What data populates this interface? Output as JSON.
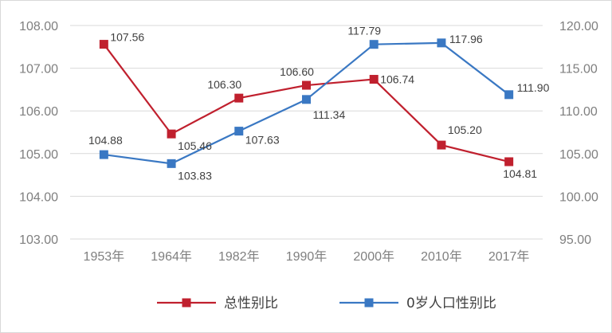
{
  "chart_data": {
    "type": "line",
    "categories": [
      "1953年",
      "1964年",
      "1982年",
      "1990年",
      "2000年",
      "2010年",
      "2017年"
    ],
    "series": [
      {
        "name": "总性别比",
        "axis": "left",
        "color": "#c0202e",
        "values": [
          107.56,
          105.46,
          106.3,
          106.6,
          106.74,
          105.2,
          104.81
        ],
        "labels": [
          "107.56",
          "105.46",
          "106.30",
          "106.60",
          "106.74",
          "105.20",
          "104.81"
        ]
      },
      {
        "name": "0岁人口性别比",
        "axis": "right",
        "color": "#3a78c3",
        "values": [
          104.88,
          103.83,
          107.63,
          111.34,
          117.79,
          117.96,
          111.9
        ],
        "labels": [
          "104.88",
          "103.83",
          "107.63",
          "111.34",
          "117.79",
          "117.96",
          "111.90"
        ]
      }
    ],
    "y_left": {
      "ylim": [
        103,
        108
      ],
      "ticks": [
        "103.00",
        "104.00",
        "105.00",
        "106.00",
        "107.00",
        "108.00"
      ]
    },
    "y_right": {
      "ylim": [
        95,
        120
      ],
      "ticks": [
        "95.00",
        "100.00",
        "105.00",
        "110.00",
        "115.00",
        "120.00"
      ]
    },
    "grid": true,
    "legend": "bottom"
  }
}
